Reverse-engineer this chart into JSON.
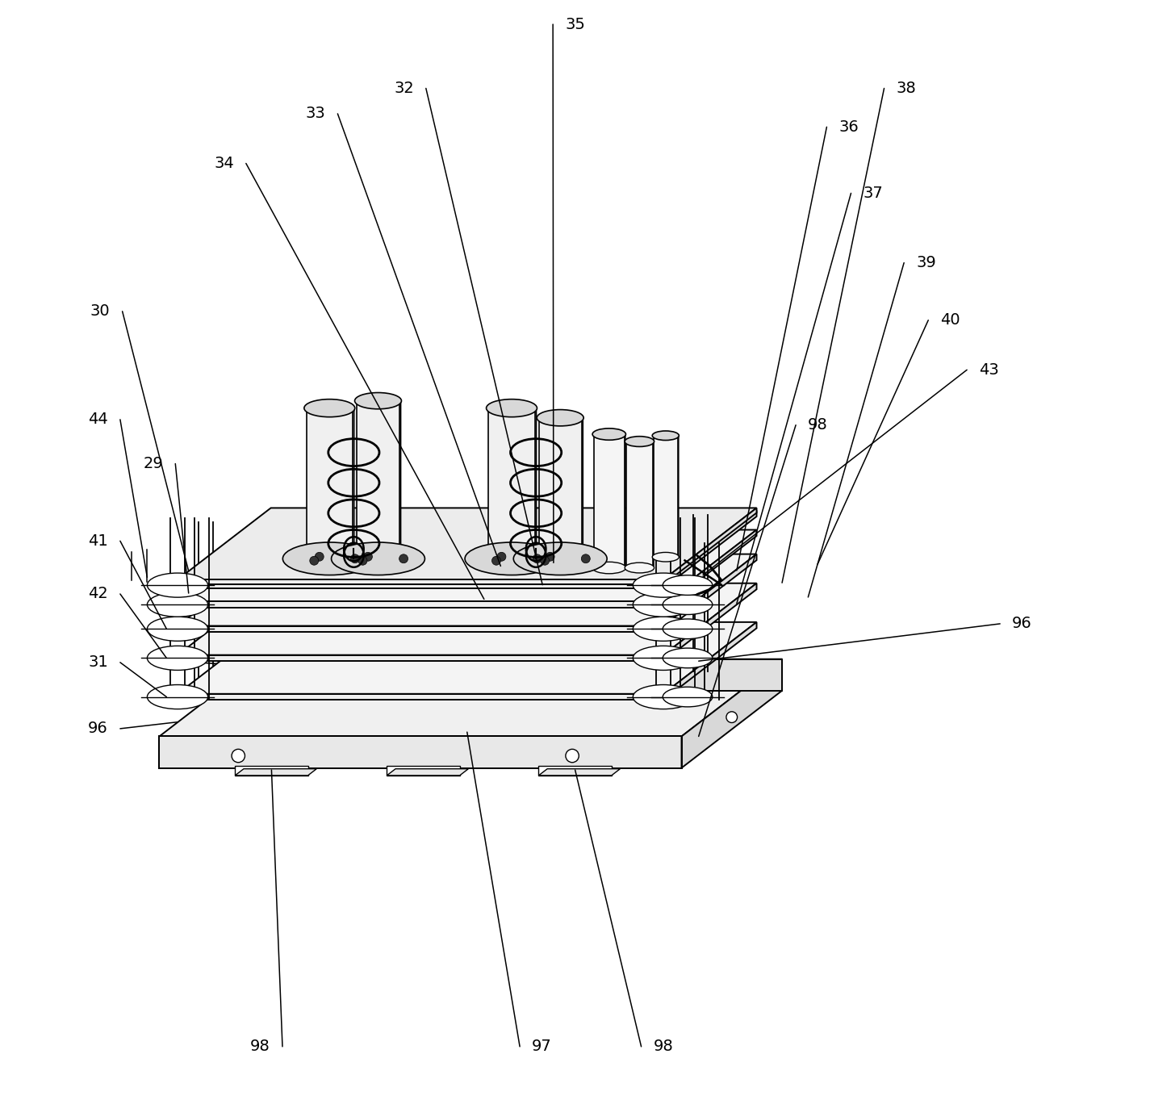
{
  "fig_width": 14.25,
  "fig_height": 13.68,
  "dpi": 100,
  "bg_color": "#ffffff",
  "lc": "#000000",
  "lw": 1.4,
  "iso": {
    "ox": 0.085,
    "oy": 0.3,
    "sx": 0.55,
    "sy": 0.22,
    "sz": 0.38
  }
}
